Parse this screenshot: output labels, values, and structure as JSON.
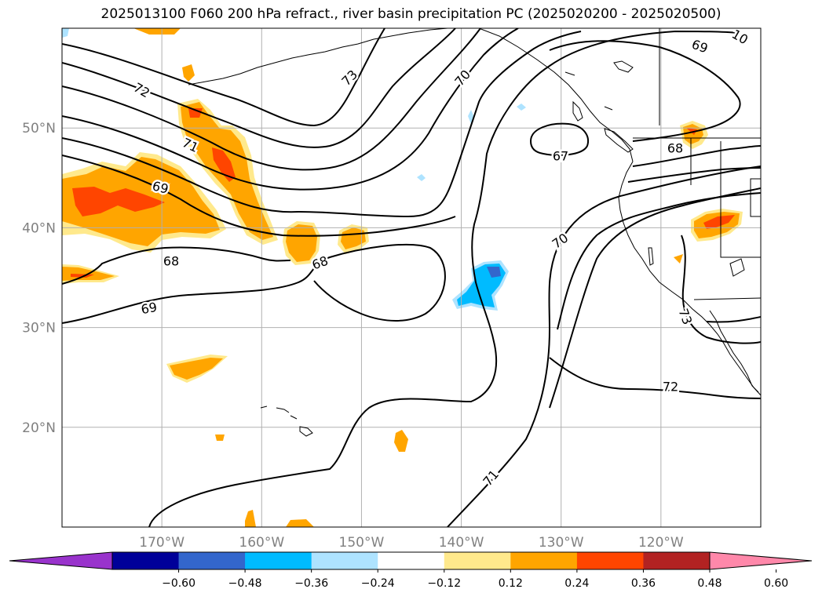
{
  "title": "2025013100 F060 200 hPa refract., river basin precipitation PC (2025020200 - 2025020500)",
  "map": {
    "lon_min": -180,
    "lon_max": -110,
    "lat_min": 10,
    "lat_max": 60,
    "grid": true,
    "lat_labels": [
      {
        "lat": 50,
        "text": "50°N"
      },
      {
        "lat": 40,
        "text": "40°N"
      },
      {
        "lat": 30,
        "text": "30°N"
      },
      {
        "lat": 20,
        "text": "20°N"
      }
    ],
    "lon_labels": [
      {
        "lon": -170,
        "text": "170°W"
      },
      {
        "lon": -160,
        "text": "160°W"
      },
      {
        "lon": -150,
        "text": "150°W"
      },
      {
        "lon": -140,
        "text": "140°W"
      },
      {
        "lon": -130,
        "text": "130°W"
      },
      {
        "lon": -120,
        "text": "120°W"
      }
    ],
    "label_color": "#808080",
    "contour_color": "#000000"
  },
  "contour_labels": [
    "72",
    "73",
    "70",
    "69",
    "10",
    "71",
    "69",
    "68",
    "67",
    "68",
    "68",
    "70",
    "69",
    "73",
    "72",
    "71"
  ],
  "colorbar": {
    "colors": [
      "#9933cc",
      "#000099",
      "#3366cc",
      "#00bbff",
      "#aee3ff",
      "#ffffff",
      "#ffe98c",
      "#ffa500",
      "#ff4500",
      "#b22222",
      "#ff88aa"
    ],
    "tick_labels": [
      "−0.60",
      "−0.48",
      "−0.36",
      "−0.24",
      "−0.12",
      "0.12",
      "0.24",
      "0.36",
      "0.48",
      "0.60"
    ]
  }
}
